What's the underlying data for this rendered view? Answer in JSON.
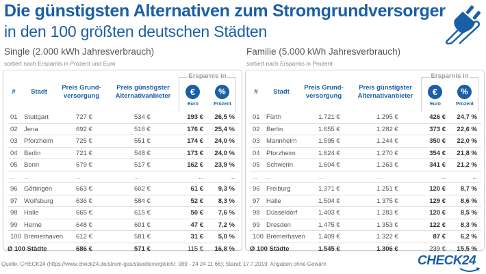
{
  "header": {
    "title": "Die günstigsten Alternativen zum Stromgrundversorger",
    "subtitle": "in den 100 größten deutschen Städten",
    "icon": "plug-icon"
  },
  "columns": {
    "num": "#",
    "city": "Stadt",
    "grund": "Preis Grund-versorgung",
    "alt": "Preis günstigster Alternativanbieter",
    "savings_group": "Ersparnis in",
    "euro_symbol": "€",
    "pct_symbol": "%",
    "euro_label": "Euro",
    "pct_label": "Prozent"
  },
  "single": {
    "title": "Single (2.000 kWh Jahresverbrauch)",
    "subtitle": "sortiert nach Ersparnis in Prozent und Euro",
    "rows": [
      {
        "num": "01",
        "city": "Stuttgart",
        "grund": "727 €",
        "alt": "534 €",
        "eur": "193 €",
        "pct": "26,5 %"
      },
      {
        "num": "02",
        "city": "Jena",
        "grund": "692 €",
        "alt": "516 €",
        "eur": "176 €",
        "pct": "25,4 %"
      },
      {
        "num": "03",
        "city": "Pforzheim",
        "grund": "725 €",
        "alt": "551 €",
        "eur": "174 €",
        "pct": "24,0 %"
      },
      {
        "num": "04",
        "city": "Berlin",
        "grund": "721 €",
        "alt": "548 €",
        "eur": "173 €",
        "pct": "24,0 %"
      },
      {
        "num": "05",
        "city": "Bonn",
        "grund": "679 €",
        "alt": "517 €",
        "eur": "162 €",
        "pct": "23,9 %"
      },
      {
        "num": "...",
        "city": "...",
        "grund": "...",
        "alt": "...",
        "eur": "...",
        "pct": "..."
      },
      {
        "num": "96",
        "city": "Göttingen",
        "grund": "663 €",
        "alt": "602 €",
        "eur": "61 €",
        "pct": "9,3 %"
      },
      {
        "num": "97",
        "city": "Wolfsburg",
        "grund": "636 €",
        "alt": "584 €",
        "eur": "52 €",
        "pct": "8,3 %"
      },
      {
        "num": "98",
        "city": "Halle",
        "grund": "665 €",
        "alt": "615 €",
        "eur": "50 €",
        "pct": "7,6 %"
      },
      {
        "num": "99",
        "city": "Herne",
        "grund": "648 €",
        "alt": "601 €",
        "eur": "47 €",
        "pct": "7,2 %"
      },
      {
        "num": "100",
        "city": "Bremerhaven",
        "grund": "612 €",
        "alt": "581 €",
        "eur": "31 €",
        "pct": "5,0 %"
      }
    ],
    "total": {
      "label": "Ø 100 Städte",
      "grund": "686 €",
      "alt": "571 €",
      "eur": "115 €",
      "pct": "16,8 %"
    }
  },
  "familie": {
    "title": "Familie (5.000 kWh Jahresverbrauch)",
    "subtitle": "sortiert nach Ersparnis in Prozent",
    "rows": [
      {
        "num": "01",
        "city": "Fürth",
        "grund": "1.721 €",
        "alt": "1.295 €",
        "eur": "426 €",
        "pct": "24,7 %"
      },
      {
        "num": "02",
        "city": "Berlin",
        "grund": "1.655 €",
        "alt": "1.282 €",
        "eur": "373 €",
        "pct": "22,6 %"
      },
      {
        "num": "03",
        "city": "Mannheim",
        "grund": "1.595 €",
        "alt": "1.244 €",
        "eur": "350 €",
        "pct": "22,0 %"
      },
      {
        "num": "04",
        "city": "Pforzheim",
        "grund": "1.624 €",
        "alt": "1.270 €",
        "eur": "354 €",
        "pct": "21,8 %"
      },
      {
        "num": "05",
        "city": "Schwerin",
        "grund": "1.604 €",
        "alt": "1.263 €",
        "eur": "341 €",
        "pct": "21,2 %"
      },
      {
        "num": "...",
        "city": "...",
        "grund": "...",
        "alt": "...",
        "eur": "...",
        "pct": "..."
      },
      {
        "num": "96",
        "city": "Freiburg",
        "grund": "1.371 €",
        "alt": "1.251 €",
        "eur": "120 €",
        "pct": "8,7 %"
      },
      {
        "num": "97",
        "city": "Halle",
        "grund": "1.504 €",
        "alt": "1.375 €",
        "eur": "129 €",
        "pct": "8,6 %"
      },
      {
        "num": "98",
        "city": "Düsseldorf",
        "grund": "1.403 €",
        "alt": "1.283 €",
        "eur": "120 €",
        "pct": "8,5 %"
      },
      {
        "num": "99",
        "city": "Dresden",
        "grund": "1.475 €",
        "alt": "1.353 €",
        "eur": "122 €",
        "pct": "8,3 %"
      },
      {
        "num": "100",
        "city": "Bremerhaven",
        "grund": "1.409 €",
        "alt": "1.322 €",
        "eur": "87 €",
        "pct": "6,2 %"
      }
    ],
    "total": {
      "label": "Ø 100 Städte",
      "grund": "1.545 €",
      "alt": "1.306 €",
      "eur": "239 €",
      "pct": "15,5 %"
    }
  },
  "footer": {
    "source": "Quelle: CHECK24 (https://www.check24.de/strom-gas/staedtevergleich/; 089 - 24 24 11 66); Stand: 17.7.2019, Angaben ohne Gewähr",
    "logo": "CHECK24"
  },
  "colors": {
    "brand_blue": "#1a5ea6",
    "border_gray": "#cfcfcf",
    "text_gray": "#555555"
  }
}
